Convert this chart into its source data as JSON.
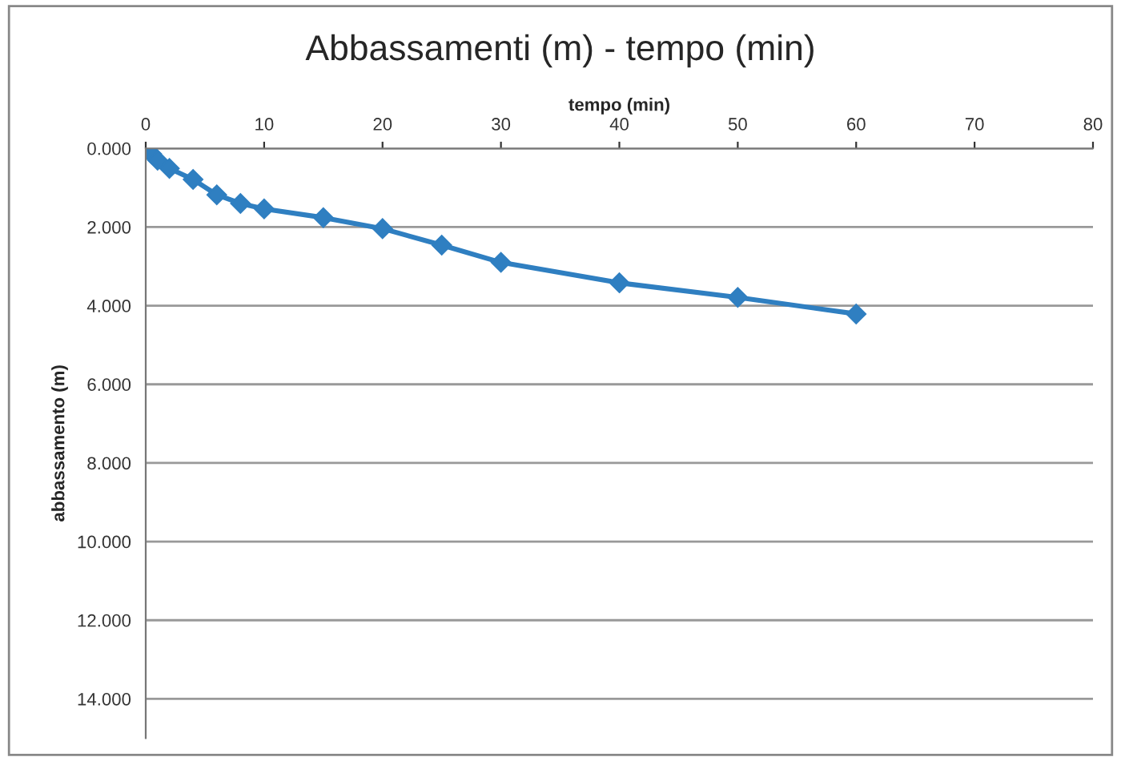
{
  "chart_data": {
    "type": "line",
    "title": "Abbassamenti (m) - tempo (min)",
    "xlabel": "tempo (min)",
    "ylabel": "abbassamento (m)",
    "x": [
      0,
      0.5,
      1,
      2,
      4,
      6,
      8,
      10,
      15,
      20,
      25,
      30,
      40,
      50,
      60
    ],
    "series": [
      {
        "color": "#2f7fc1",
        "values": [
          0,
          0.14,
          0.3,
          0.51,
          0.79,
          1.18,
          1.4,
          1.54,
          1.76,
          2.04,
          2.46,
          2.9,
          3.42,
          3.79,
          4.21
        ]
      }
    ],
    "xlim": [
      0,
      80
    ],
    "xticks": [
      0,
      10,
      20,
      30,
      40,
      50,
      60,
      70,
      80
    ],
    "ylim": [
      15,
      0
    ],
    "yticks": [
      {
        "value": 0,
        "label": "0.000"
      },
      {
        "value": 2,
        "label": "2.000"
      },
      {
        "value": 4,
        "label": "4.000"
      },
      {
        "value": 6,
        "label": "6.000"
      },
      {
        "value": 8,
        "label": "8.000"
      },
      {
        "value": 10,
        "label": "10.000"
      },
      {
        "value": 12,
        "label": "12.000"
      },
      {
        "value": 14,
        "label": "14.000"
      }
    ],
    "grid": "y",
    "marker": "diamond",
    "line_style": "solid",
    "legend": false
  }
}
